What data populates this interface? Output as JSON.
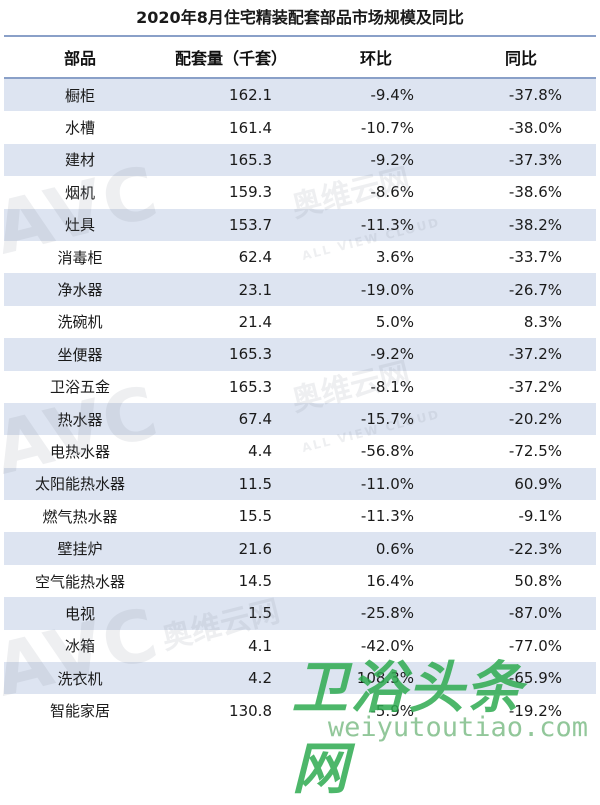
{
  "title": "2020年8月住宅精装配套部品市场规模及同比",
  "headers": [
    "部品",
    "配套量（千套）",
    "环比",
    "同比"
  ],
  "rows": [
    [
      "橱柜",
      "162.1",
      "-9.4%",
      "-37.8%"
    ],
    [
      "水槽",
      "161.4",
      "-10.7%",
      "-38.0%"
    ],
    [
      "建材",
      "165.3",
      "-9.2%",
      "-37.3%"
    ],
    [
      "烟机",
      "159.3",
      "-8.6%",
      "-38.6%"
    ],
    [
      "灶具",
      "153.7",
      "-11.3%",
      "-38.2%"
    ],
    [
      "消毒柜",
      "62.4",
      "3.6%",
      "-33.7%"
    ],
    [
      "净水器",
      "23.1",
      "-19.0%",
      "-26.7%"
    ],
    [
      "洗碗机",
      "21.4",
      "5.0%",
      "8.3%"
    ],
    [
      "坐便器",
      "165.3",
      "-9.2%",
      "-37.2%"
    ],
    [
      "卫浴五金",
      "165.3",
      "-8.1%",
      "-37.2%"
    ],
    [
      "热水器",
      "67.4",
      "-15.7%",
      "-20.2%"
    ],
    [
      "电热水器",
      "4.4",
      "-56.8%",
      "-72.5%"
    ],
    [
      "太阳能热水器",
      "11.5",
      "-11.0%",
      "60.9%"
    ],
    [
      "燃气热水器",
      "15.5",
      "-11.3%",
      "-9.1%"
    ],
    [
      "壁挂炉",
      "21.6",
      "0.6%",
      "-22.3%"
    ],
    [
      "空气能热水器",
      "14.5",
      "16.4%",
      "50.8%"
    ],
    [
      "电视",
      "1.5",
      "-25.8%",
      "-87.0%"
    ],
    [
      "冰箱",
      "4.1",
      "-42.0%",
      "-77.0%"
    ],
    [
      "洗衣机",
      "4.2",
      "108.3%",
      "-65.9%"
    ],
    [
      "智能家居",
      "130.8",
      "-5.9%",
      "-19.2%"
    ]
  ],
  "watermarks": {
    "brand": "AVC",
    "brand_cn": "奥维云网",
    "brand_en": "ALL VIEW CLOUD",
    "site_cn": "卫浴头条网",
    "site_url": "weiyutoutiao.com"
  },
  "colors": {
    "row_alt": "#dde4f1",
    "rule": "#8aa0c8",
    "site_green": "#2eaa50"
  }
}
